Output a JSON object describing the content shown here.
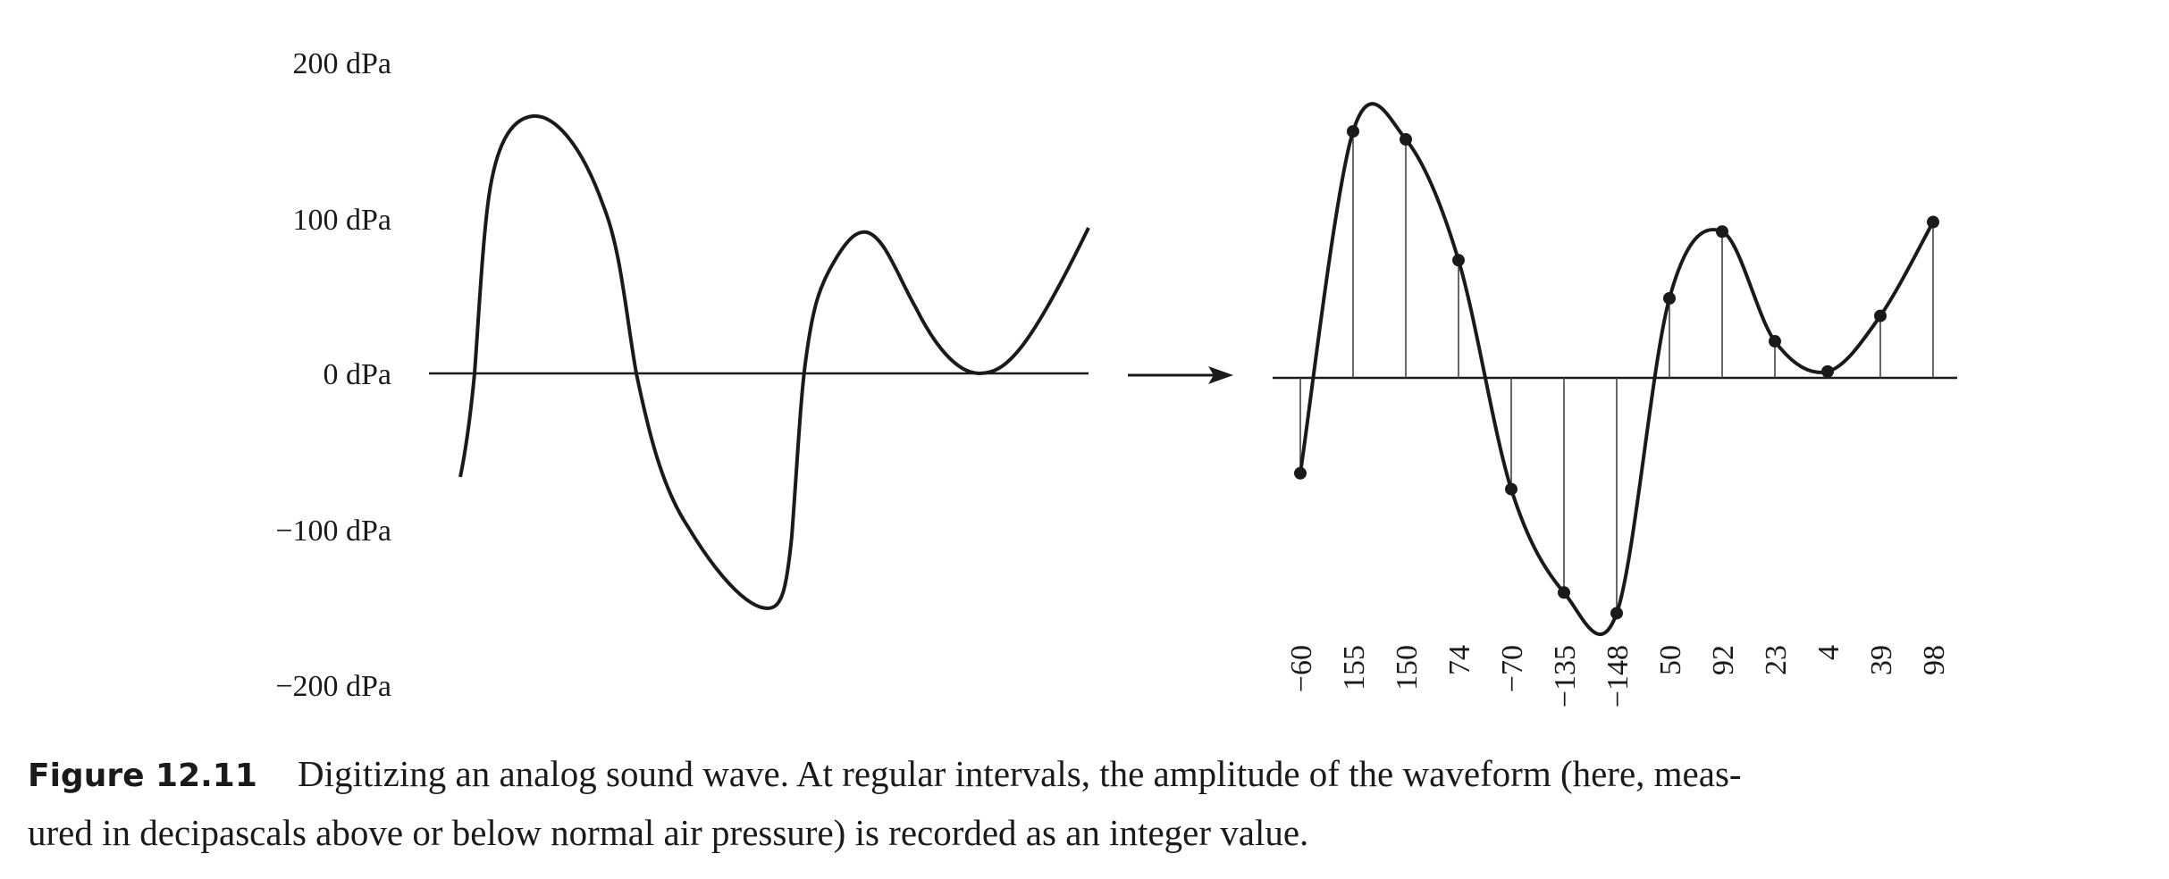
{
  "chart_data": [
    {
      "type": "line",
      "title": "",
      "ylabel": "",
      "yticks": [
        "200 dPa",
        "100 dPa",
        "0 dPa",
        "−100 dPa",
        "−200 dPa"
      ],
      "ytick_values": [
        200,
        100,
        0,
        -100,
        -200
      ],
      "ylim": [
        -200,
        200
      ],
      "description_kind": "continuous analog waveform"
    },
    {
      "type": "scatter",
      "title": "",
      "sample_labels": [
        "−60",
        "155",
        "150",
        "74",
        "−70",
        "−135",
        "−148",
        "50",
        "92",
        "23",
        "4",
        "39",
        "98"
      ],
      "values": [
        -60,
        155,
        150,
        74,
        -70,
        -135,
        -148,
        50,
        92,
        23,
        4,
        39,
        98
      ],
      "ylim": [
        -200,
        200
      ],
      "stems": true
    }
  ],
  "caption": {
    "label": "Figure 12.11",
    "line1": "Digitizing an analog sound wave. At regular intervals, the amplitude of the waveform (here, meas-",
    "line2": "ured in decipascals above or below normal air pressure) is recorded as an integer value."
  },
  "colors": {
    "ink": "#1a1a1a",
    "stem": "#444444"
  }
}
